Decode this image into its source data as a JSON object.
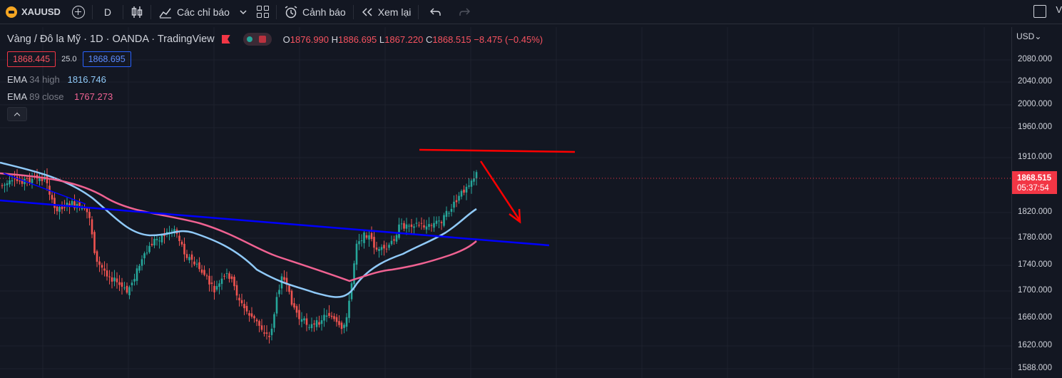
{
  "toolbar": {
    "symbol": "XAUUSD",
    "interval": "D",
    "indicators_label": "Các chỉ báo",
    "alert_label": "Cảnh báo",
    "replay_label": "Xem lại",
    "right_text": "V"
  },
  "legend": {
    "title": "Vàng / Đô la Mỹ · 1D · OANDA · TradingView",
    "open_key": "O",
    "open": "1876.990",
    "high_key": "H",
    "high": "1886.695",
    "low_key": "L",
    "low": "1867.220",
    "close_key": "C",
    "close": "1868.515",
    "change": "−8.475 (−0.45%)",
    "bid": "1868.445",
    "spread": "25.0",
    "ask": "1868.695",
    "ema1": {
      "name": "EMA",
      "params": "34 high",
      "value": "1816.746"
    },
    "ema2": {
      "name": "EMA",
      "params": "89 close",
      "value": "1767.273"
    }
  },
  "axis": {
    "currency": "USD",
    "labels": [
      "2080.000",
      "2040.000",
      "2000.000",
      "1960.000",
      "1910.000",
      "1820.000",
      "1780.000",
      "1740.000",
      "1700.000",
      "1660.000",
      "1620.000",
      "1588.000"
    ],
    "last_price": "1868.515",
    "countdown": "05:37:54"
  },
  "colors": {
    "background": "#131722",
    "up": "#26a69a",
    "down": "#ef5350",
    "ema34": "#90caf9",
    "ema89": "#f06292",
    "trendline": "#0000ff",
    "drawing": "#ff0000"
  }
}
